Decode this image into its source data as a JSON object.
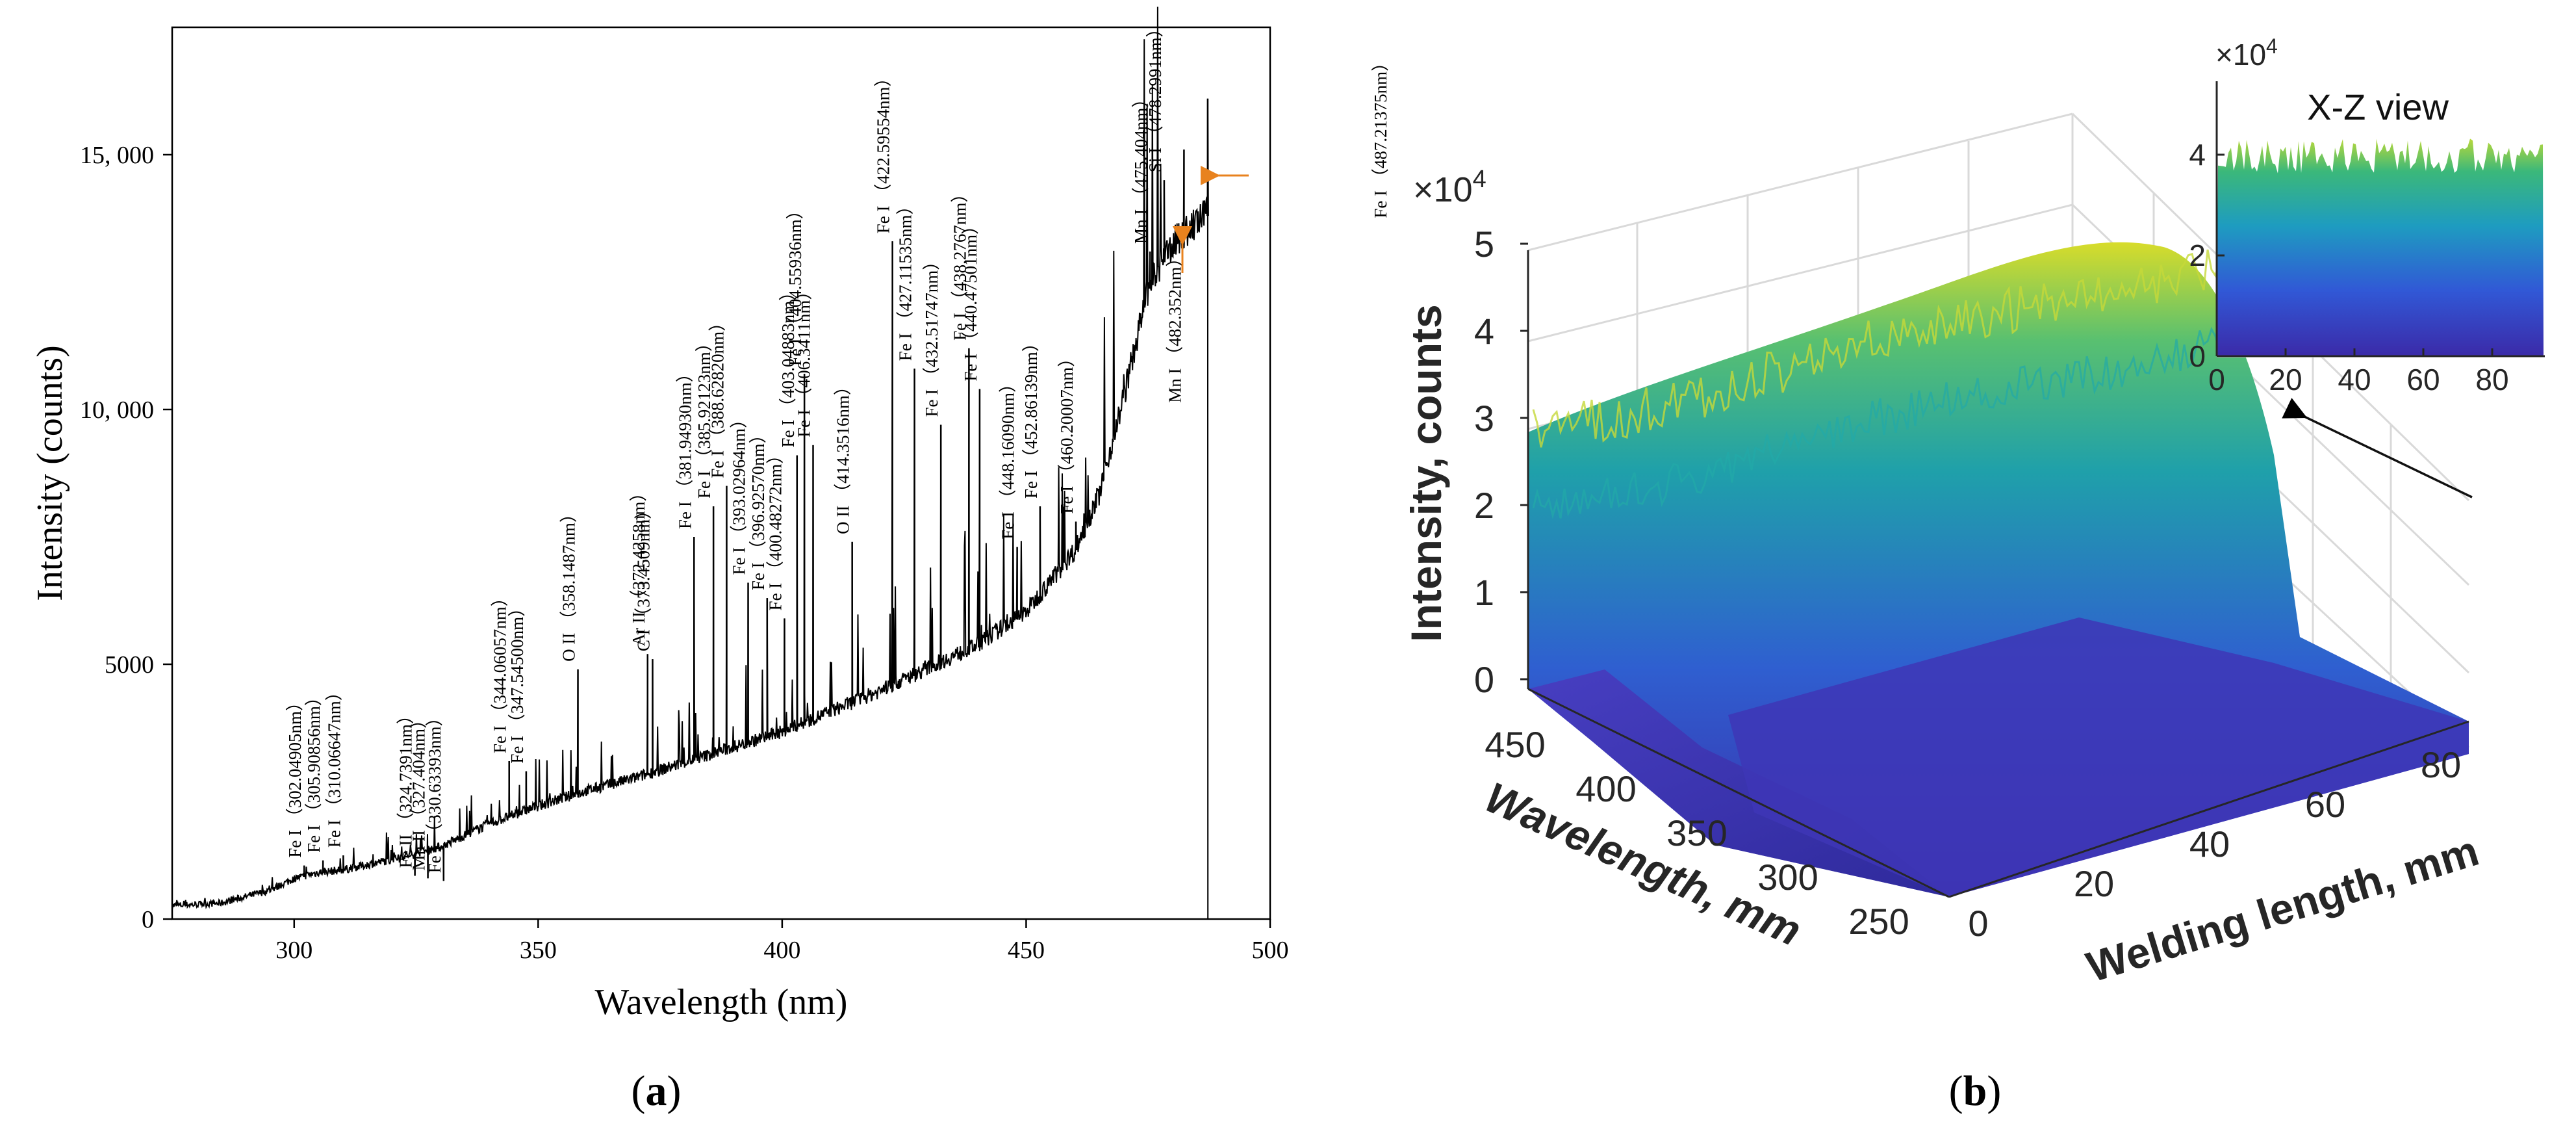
{
  "colors": {
    "spectrum_line": "#000000",
    "arrow_orange": "#e8821e",
    "surface_low": "#3b2aa8",
    "surface_mid": "#1fa0aa",
    "surface_high": "#d8dc2a"
  },
  "panel_a": {
    "label_prefix": "(",
    "label_letter": "a",
    "label_suffix": ")"
  },
  "panel_b": {
    "label_prefix": "(",
    "label_letter": "b",
    "label_suffix": ")"
  },
  "chart_data": [
    {
      "type": "line",
      "xlabel": "Wavelength (nm)",
      "ylabel": "Intensity (counts)",
      "xlim": [
        275,
        500
      ],
      "ylim": [
        0,
        17500
      ],
      "x_ticks": [
        300,
        350,
        400,
        450,
        500
      ],
      "y_ticks": [
        {
          "value": 0,
          "label": "0"
        },
        {
          "value": 5000,
          "label": "5000"
        },
        {
          "value": 10000,
          "label": "10, 000"
        },
        {
          "value": 15000,
          "label": "15, 000"
        }
      ],
      "baseline": [
        [
          275,
          250
        ],
        [
          285,
          300
        ],
        [
          295,
          550
        ],
        [
          300,
          780
        ],
        [
          305,
          900
        ],
        [
          310,
          950
        ],
        [
          320,
          1150
        ],
        [
          330,
          1400
        ],
        [
          340,
          1850
        ],
        [
          350,
          2200
        ],
        [
          360,
          2500
        ],
        [
          370,
          2750
        ],
        [
          380,
          3050
        ],
        [
          390,
          3350
        ],
        [
          400,
          3650
        ],
        [
          410,
          4050
        ],
        [
          420,
          4450
        ],
        [
          430,
          4900
        ],
        [
          440,
          5350
        ],
        [
          450,
          6000
        ],
        [
          460,
          7200
        ],
        [
          465,
          8300
        ],
        [
          470,
          10200
        ],
        [
          475,
          12300
        ],
        [
          480,
          13200
        ],
        [
          485,
          13600
        ],
        [
          487.2,
          13800
        ]
      ],
      "peaks": [
        {
          "x": 302.05,
          "y": 1050
        },
        {
          "x": 305.91,
          "y": 1150
        },
        {
          "x": 310.07,
          "y": 1250
        },
        {
          "x": 324.74,
          "y": 850
        },
        {
          "x": 327.4,
          "y": 800
        },
        {
          "x": 330.63,
          "y": 750
        },
        {
          "x": 344.06,
          "y": 3100
        },
        {
          "x": 347.55,
          "y": 2900
        },
        {
          "x": 358.15,
          "y": 4900
        },
        {
          "x": 372.43,
          "y": 5200
        },
        {
          "x": 373.45,
          "y": 5100
        },
        {
          "x": 381.95,
          "y": 7500
        },
        {
          "x": 385.92,
          "y": 8100
        },
        {
          "x": 388.63,
          "y": 8500
        },
        {
          "x": 393.03,
          "y": 6600
        },
        {
          "x": 396.93,
          "y": 6300
        },
        {
          "x": 400.48,
          "y": 5900
        },
        {
          "x": 403.05,
          "y": 9100
        },
        {
          "x": 404.56,
          "y": 10700
        },
        {
          "x": 406.34,
          "y": 9300
        },
        {
          "x": 414.35,
          "y": 7400
        },
        {
          "x": 422.6,
          "y": 13300
        },
        {
          "x": 427.12,
          "y": 10800
        },
        {
          "x": 432.52,
          "y": 9700
        },
        {
          "x": 438.28,
          "y": 11200
        },
        {
          "x": 440.48,
          "y": 10400
        },
        {
          "x": 448.16,
          "y": 7300
        },
        {
          "x": 452.86,
          "y": 8100
        },
        {
          "x": 460.2,
          "y": 7800
        },
        {
          "x": 475.4,
          "y": 13100
        },
        {
          "x": 478.29,
          "y": 14500
        },
        {
          "x": 482.35,
          "y": 15100
        },
        {
          "x": 487.21,
          "y": 16100
        }
      ],
      "annotations": [
        {
          "x": 302.05,
          "y": 1050,
          "text": "Fe I （302.04905nm）"
        },
        {
          "x": 305.91,
          "y": 1150,
          "text": "Fe I （305.90856nm）"
        },
        {
          "x": 310.07,
          "y": 1250,
          "text": "Fe I （310.06647nm）"
        },
        {
          "x": 324.74,
          "y": 850,
          "text": "Fe II （324.7391nm）"
        },
        {
          "x": 327.4,
          "y": 800,
          "text": "Mn II （327.404nm）"
        },
        {
          "x": 330.63,
          "y": 750,
          "text": "Fe I （330.63393nm）"
        },
        {
          "x": 344.06,
          "y": 3100,
          "text": "Fe I （344.06057nm）"
        },
        {
          "x": 347.55,
          "y": 2900,
          "text": "Fe I （347.54500nm）"
        },
        {
          "x": 358.15,
          "y": 4900,
          "text": "O II （358.1487nm）"
        },
        {
          "x": 372.43,
          "y": 5200,
          "text": "Ar II （372.4258nm）"
        },
        {
          "x": 373.45,
          "y": 5100,
          "text": "C I （373.4509nm）"
        },
        {
          "x": 381.95,
          "y": 7500,
          "text": "Fe I （381.94930nm）"
        },
        {
          "x": 385.92,
          "y": 8100,
          "text": "Fe I （385.92123nm）"
        },
        {
          "x": 388.63,
          "y": 8500,
          "text": "Fe I （388.62820nm）"
        },
        {
          "x": 393.03,
          "y": 6600,
          "text": "Fe I （393.02964nm）"
        },
        {
          "x": 396.93,
          "y": 6300,
          "text": "Fe I （396.92570nm）"
        },
        {
          "x": 400.48,
          "y": 5900,
          "text": "Fe I （400.48272nm）"
        },
        {
          "x": 403.05,
          "y": 9100,
          "text": "Fe I （403.04883nm）"
        },
        {
          "x": 404.56,
          "y": 10700,
          "text": "Fe I （404.55936nm）"
        },
        {
          "x": 406.34,
          "y": 9300,
          "text": "Fe I （406.3411nm）"
        },
        {
          "x": 414.35,
          "y": 7400,
          "text": "O II （414.3516nm）"
        },
        {
          "x": 422.6,
          "y": 13300,
          "text": "Fe I （422.59554nm）"
        },
        {
          "x": 427.12,
          "y": 10800,
          "text": "Fe I （427.11535nm）"
        },
        {
          "x": 432.52,
          "y": 9700,
          "text": "Fe I （432.51747nm）"
        },
        {
          "x": 438.28,
          "y": 11200,
          "text": "Fe I （438.2767nm）"
        },
        {
          "x": 440.48,
          "y": 10400,
          "text": "Fe I （440.47501nm）"
        },
        {
          "x": 448.16,
          "y": 7300,
          "text": "Fe I （448.16090nm）"
        },
        {
          "x": 452.86,
          "y": 8100,
          "text": "Fe I （452.86139nm）"
        },
        {
          "x": 460.2,
          "y": 7800,
          "text": "Fe I （460.20007nm）"
        },
        {
          "x": 475.4,
          "y": 13100,
          "text": "Mn I （475.404nm）"
        },
        {
          "x": 478.29,
          "y": 14500,
          "text": "Si I （478.2991nm）"
        },
        {
          "x": 482.35,
          "y": 13400,
          "text": "Mn I （482.352nm）",
          "below": true
        },
        {
          "x": 487.21,
          "y": 14300,
          "text": "Fe I （487.21375nm）",
          "right": true
        }
      ]
    },
    {
      "type": "surface",
      "zlabel": "Intensity, counts",
      "xlabel": "Welding length, mm",
      "ylabel": "Wavelength, mm",
      "z_multiplier": "×10",
      "z_multiplier_exp": "4",
      "z_ticks": [
        "0",
        "1",
        "2",
        "3",
        "4",
        "5"
      ],
      "x_ticks": [
        "0",
        "20",
        "40",
        "60",
        "80"
      ],
      "y_ticks": [
        "250",
        "300",
        "350",
        "400",
        "450"
      ],
      "inset": {
        "title": "X-Z view",
        "z_multiplier": "×10",
        "z_multiplier_exp": "4",
        "y_ticks": [
          "0",
          "2",
          "4"
        ],
        "x_ticks": [
          "0",
          "20",
          "40",
          "60",
          "80"
        ]
      }
    }
  ]
}
